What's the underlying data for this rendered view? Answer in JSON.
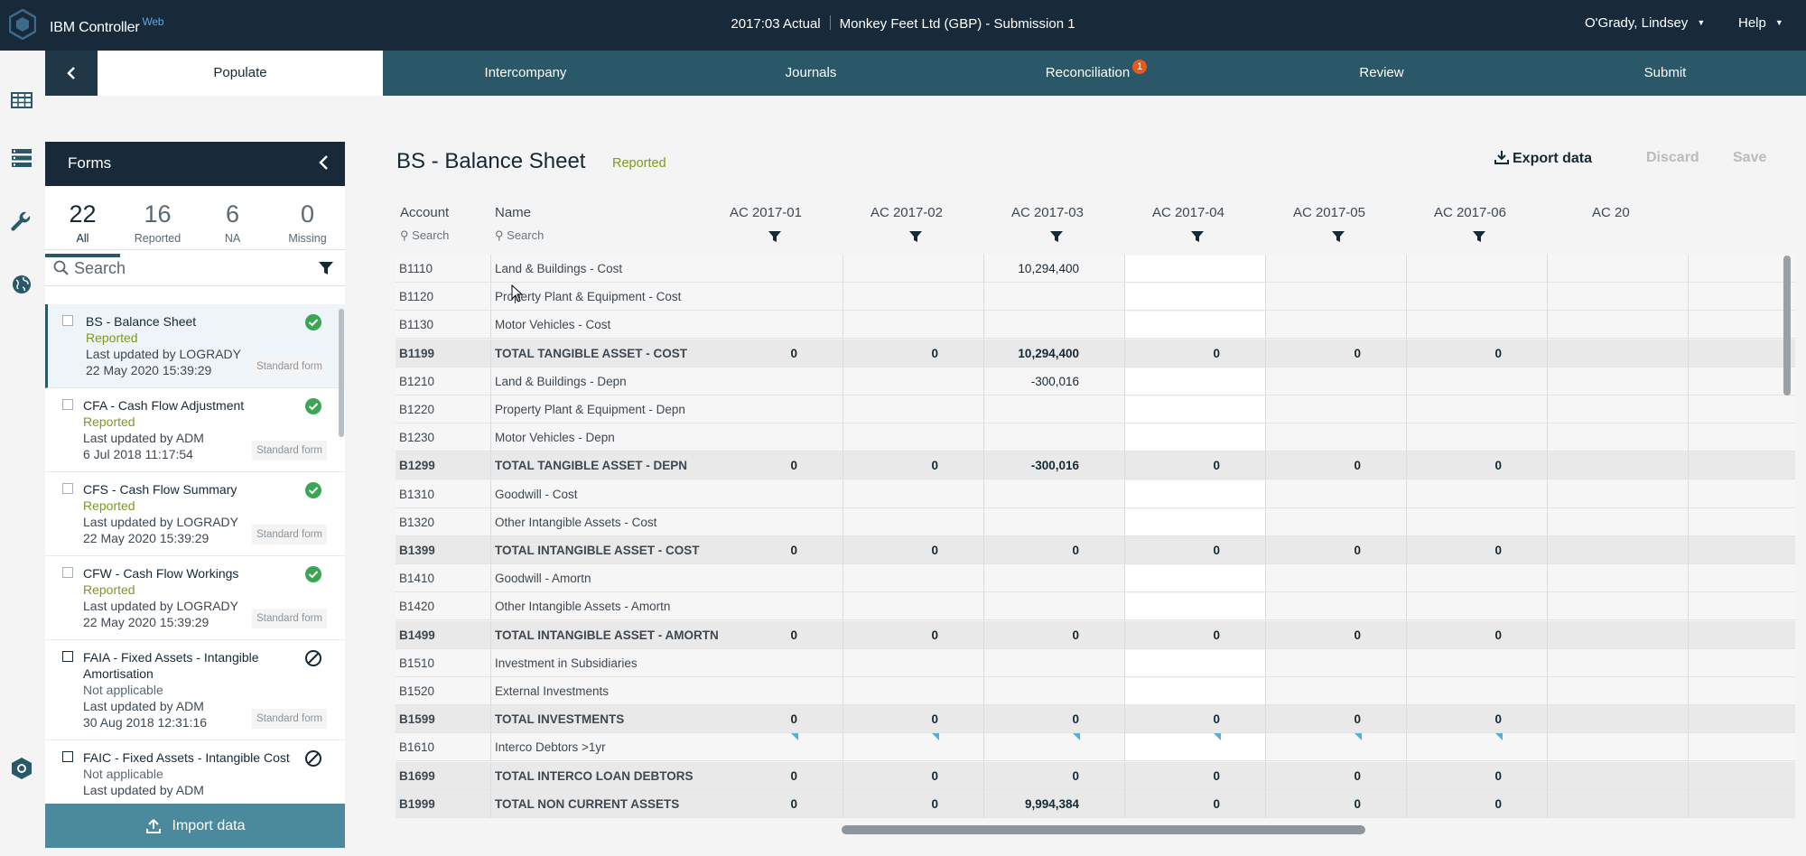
{
  "header": {
    "app_name": "IBM Controller",
    "app_suffix": "Web",
    "period": "2017:03 Actual",
    "company": "Monkey Feet Ltd (GBP) - Submission 1",
    "user": "O'Grady, Lindsey",
    "help": "Help"
  },
  "tabs": [
    {
      "label": "Populate"
    },
    {
      "label": "Intercompany"
    },
    {
      "label": "Journals"
    },
    {
      "label": "Reconciliation",
      "badge": "1"
    },
    {
      "label": "Review"
    },
    {
      "label": "Submit"
    }
  ],
  "forms_panel": {
    "title": "Forms",
    "counts": [
      {
        "num": "22",
        "label": "All"
      },
      {
        "num": "16",
        "label": "Reported"
      },
      {
        "num": "6",
        "label": "NA"
      },
      {
        "num": "0",
        "label": "Missing"
      }
    ],
    "search_placeholder": "Search",
    "items": [
      {
        "title": "BS - Balance Sheet",
        "status": "Reported",
        "updated_by": "Last updated by LOGRADY",
        "updated_at": "22 May 2020 15:39:29",
        "type": "Standard form",
        "state": "check-circle-icon"
      },
      {
        "title": "CFA - Cash Flow Adjustment",
        "status": "Reported",
        "updated_by": "Last updated by ADM",
        "updated_at": "6 Jul 2018 11:17:54",
        "type": "Standard form",
        "state": "check-circle-icon"
      },
      {
        "title": "CFS - Cash Flow Summary",
        "status": "Reported",
        "updated_by": "Last updated by LOGRADY",
        "updated_at": "22 May 2020 15:39:29",
        "type": "Standard form",
        "state": "check-circle-icon"
      },
      {
        "title": "CFW - Cash Flow Workings",
        "status": "Reported",
        "updated_by": "Last updated by LOGRADY",
        "updated_at": "22 May 2020 15:39:29",
        "type": "Standard form",
        "state": "check-circle-icon"
      },
      {
        "title": "FAIA - Fixed Assets - Intangible Amortisation",
        "status": "Not applicable",
        "updated_by": "Last updated by ADM",
        "updated_at": "30 Aug 2018 12:31:16",
        "type": "Standard form",
        "state": "not-applicable-icon"
      },
      {
        "title": "FAIC - Fixed Assets - Intangible Cost",
        "status": "Not applicable",
        "updated_by": "Last updated by ADM",
        "updated_at": "",
        "type": "",
        "state": "not-applicable-icon"
      }
    ],
    "import_label": "Import data"
  },
  "main": {
    "title": "BS - Balance Sheet",
    "status": "Reported",
    "export_label": "Export data",
    "discard_label": "Discard",
    "save_label": "Save"
  },
  "grid": {
    "account_header": "Account",
    "name_header": "Name",
    "search_placeholder": "Search",
    "columns": [
      "AC 2017-01",
      "AC 2017-02",
      "AC 2017-03",
      "AC 2017-04",
      "AC 2017-05",
      "AC 2017-06",
      "AC 20"
    ],
    "rows": [
      {
        "account": "B1110",
        "name": "Land & Buildings - Cost",
        "total": false,
        "values": [
          "",
          "",
          "10,294,400",
          "",
          "",
          ""
        ]
      },
      {
        "account": "B1120",
        "name": "Property Plant & Equipment - Cost",
        "total": false,
        "values": [
          "",
          "",
          "",
          "",
          "",
          ""
        ]
      },
      {
        "account": "B1130",
        "name": "Motor Vehicles - Cost",
        "total": false,
        "values": [
          "",
          "",
          "",
          "",
          "",
          ""
        ]
      },
      {
        "account": "B1199",
        "name": "TOTAL TANGIBLE ASSET - COST",
        "total": true,
        "values": [
          "0",
          "0",
          "10,294,400",
          "0",
          "0",
          "0"
        ]
      },
      {
        "account": "B1210",
        "name": "Land & Buildings - Depn",
        "total": false,
        "values": [
          "",
          "",
          "-300,016",
          "",
          "",
          ""
        ]
      },
      {
        "account": "B1220",
        "name": "Property Plant & Equipment - Depn",
        "total": false,
        "values": [
          "",
          "",
          "",
          "",
          "",
          ""
        ]
      },
      {
        "account": "B1230",
        "name": "Motor Vehicles - Depn",
        "total": false,
        "values": [
          "",
          "",
          "",
          "",
          "",
          ""
        ]
      },
      {
        "account": "B1299",
        "name": "TOTAL TANGIBLE ASSET - DEPN",
        "total": true,
        "values": [
          "0",
          "0",
          "-300,016",
          "0",
          "0",
          "0"
        ]
      },
      {
        "account": "B1310",
        "name": "Goodwill - Cost",
        "total": false,
        "values": [
          "",
          "",
          "",
          "",
          "",
          ""
        ]
      },
      {
        "account": "B1320",
        "name": "Other Intangible Assets - Cost",
        "total": false,
        "values": [
          "",
          "",
          "",
          "",
          "",
          ""
        ]
      },
      {
        "account": "B1399",
        "name": "TOTAL INTANGIBLE ASSET - COST",
        "total": true,
        "values": [
          "0",
          "0",
          "0",
          "0",
          "0",
          "0"
        ]
      },
      {
        "account": "B1410",
        "name": "Goodwill - Amortn",
        "total": false,
        "values": [
          "",
          "",
          "",
          "",
          "",
          ""
        ]
      },
      {
        "account": "B1420",
        "name": "Other Intangible Assets - Amortn",
        "total": false,
        "values": [
          "",
          "",
          "",
          "",
          "",
          ""
        ]
      },
      {
        "account": "B1499",
        "name": "TOTAL INTANGIBLE ASSET - AMORTN",
        "total": true,
        "values": [
          "0",
          "0",
          "0",
          "0",
          "0",
          "0"
        ]
      },
      {
        "account": "B1510",
        "name": "Investment in Subsidiaries",
        "total": false,
        "values": [
          "",
          "",
          "",
          "",
          "",
          ""
        ]
      },
      {
        "account": "B1520",
        "name": "External Investments",
        "total": false,
        "values": [
          "",
          "",
          "",
          "",
          "",
          ""
        ]
      },
      {
        "account": "B1599",
        "name": "TOTAL INVESTMENTS",
        "total": true,
        "values": [
          "0",
          "0",
          "0",
          "0",
          "0",
          "0"
        ]
      },
      {
        "account": "B1610",
        "name": "Interco Debtors >1yr",
        "total": false,
        "flagged": true,
        "values": [
          "",
          "",
          "",
          "",
          "",
          ""
        ]
      },
      {
        "account": "B1699",
        "name": "TOTAL INTERCO LOAN DEBTORS",
        "total": true,
        "values": [
          "0",
          "0",
          "0",
          "0",
          "0",
          "0"
        ]
      },
      {
        "account": "B1999",
        "name": "TOTAL NON CURRENT ASSETS",
        "total": true,
        "values": [
          "0",
          "0",
          "9,994,384",
          "0",
          "0",
          "0"
        ]
      }
    ]
  },
  "colors": {
    "topbar": "#182a3a",
    "tab_bg": "#2a5868",
    "reported": "#7a9a1f",
    "success": "#3aa655",
    "badge": "#e8591a"
  }
}
